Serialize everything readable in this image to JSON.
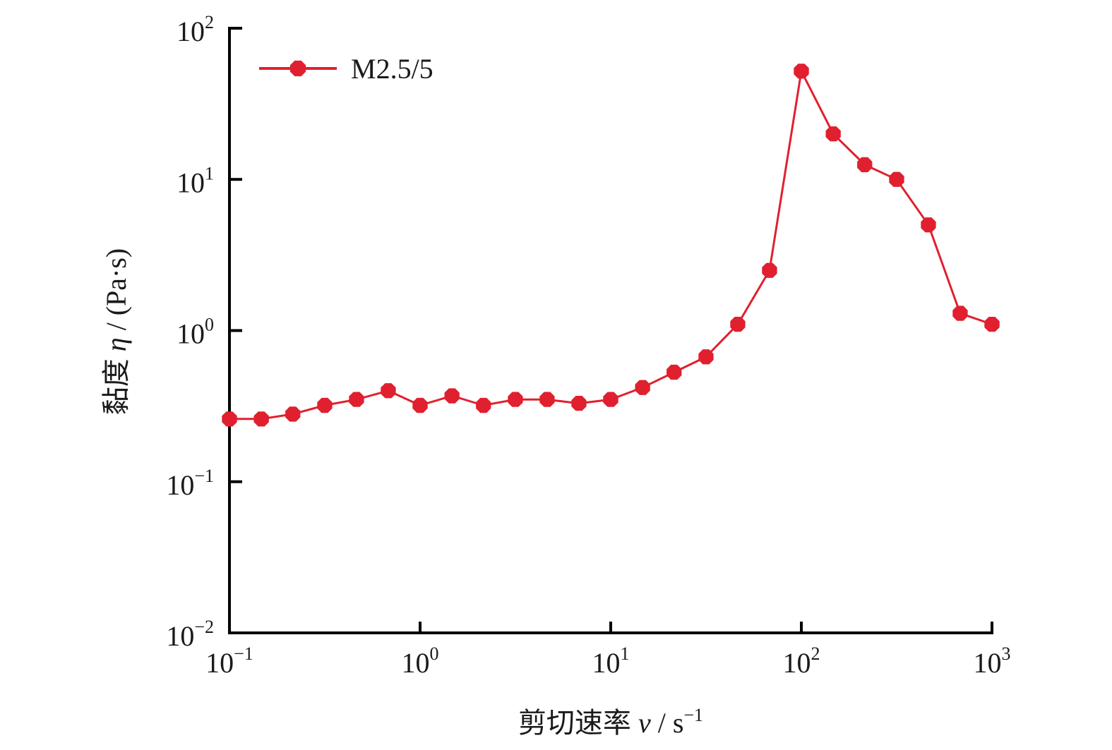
{
  "chart_data": {
    "type": "line",
    "xscale": "log",
    "yscale": "log",
    "xlim": [
      0.1,
      1000
    ],
    "ylim": [
      0.01,
      100
    ],
    "xlabel": "剪切速率 v / s⁻¹",
    "xlabel_parts": {
      "prefix": "剪切速率 ",
      "var": "v",
      "unit": " / s",
      "sup": "−1"
    },
    "ylabel": "黏度 η / (Pa·s)",
    "ylabel_parts": {
      "prefix": "黏度 ",
      "var": "η",
      "unit": " / (Pa·s)"
    },
    "x_ticks": [
      {
        "value": 0.1,
        "base": "10",
        "exp": "−1"
      },
      {
        "value": 1,
        "base": "10",
        "exp": "0"
      },
      {
        "value": 10,
        "base": "10",
        "exp": "1"
      },
      {
        "value": 100,
        "base": "10",
        "exp": "2"
      },
      {
        "value": 1000,
        "base": "10",
        "exp": "3"
      }
    ],
    "y_ticks": [
      {
        "value": 0.01,
        "base": "10",
        "exp": "−2"
      },
      {
        "value": 0.1,
        "base": "10",
        "exp": "−1"
      },
      {
        "value": 1,
        "base": "10",
        "exp": "0"
      },
      {
        "value": 10,
        "base": "10",
        "exp": "1"
      },
      {
        "value": 100,
        "base": "10",
        "exp": "2"
      }
    ],
    "grid": false,
    "legend_position": "top-left",
    "series": [
      {
        "name": "M2.5/5",
        "color": "#e0202e",
        "marker": "octagon",
        "x": [
          0.1,
          0.147,
          0.215,
          0.316,
          0.464,
          0.681,
          1.0,
          1.47,
          2.15,
          3.16,
          4.64,
          6.81,
          10.0,
          14.7,
          21.5,
          31.6,
          46.4,
          68.1,
          100,
          147,
          215,
          316,
          464,
          681,
          1000
        ],
        "y": [
          0.26,
          0.26,
          0.28,
          0.32,
          0.35,
          0.4,
          0.32,
          0.37,
          0.32,
          0.35,
          0.35,
          0.33,
          0.35,
          0.42,
          0.53,
          0.67,
          1.1,
          2.5,
          52,
          20,
          12.5,
          10,
          5,
          1.3,
          1.1
        ]
      }
    ]
  }
}
